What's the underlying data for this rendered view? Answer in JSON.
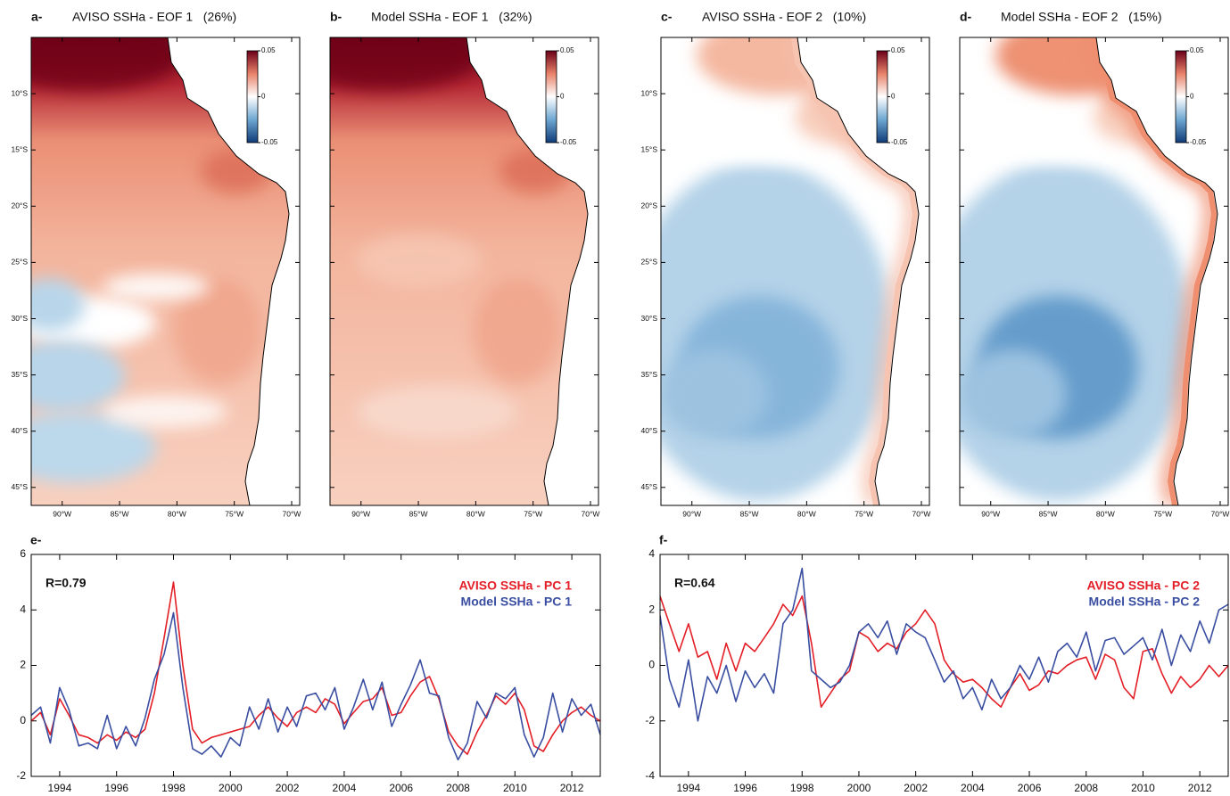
{
  "maps": [
    {
      "label": "a-",
      "title": "AVISO SSHa - EOF 1   (26%)",
      "show_lat_labels": true
    },
    {
      "label": "b-",
      "title": "Model SSHa - EOF 1   (32%)",
      "show_lat_labels": false
    },
    {
      "label": "c-",
      "title": "AVISO SSHa - EOF 2   (10%)",
      "show_lat_labels": true
    },
    {
      "label": "d-",
      "title": "Model SSHa - EOF 2   (15%)",
      "show_lat_labels": false
    }
  ],
  "map_axes": {
    "latlim": [
      -46.6,
      -5
    ],
    "lonlim": [
      -92.7,
      -69.3
    ],
    "lat_ticks": [
      {
        "value": -10,
        "label": "10°S"
      },
      {
        "value": -15,
        "label": "15°S"
      },
      {
        "value": -20,
        "label": "20°S"
      },
      {
        "value": -25,
        "label": "25°S"
      },
      {
        "value": -30,
        "label": "30°S"
      },
      {
        "value": -35,
        "label": "35°S"
      },
      {
        "value": -40,
        "label": "40°S"
      },
      {
        "value": -45,
        "label": "45°S"
      }
    ],
    "lon_ticks": [
      {
        "value": -90,
        "label": "90°W"
      },
      {
        "value": -85,
        "label": "85°W"
      },
      {
        "value": -80,
        "label": "80°W"
      },
      {
        "value": -75,
        "label": "75°W"
      },
      {
        "value": -70,
        "label": "70°W"
      }
    ],
    "colorbar": {
      "lim": [
        -0.05,
        0.05
      ],
      "ticks": [
        0.05,
        0,
        -0.05
      ]
    }
  },
  "chart_data": [
    {
      "type": "line",
      "label": "e-",
      "annotation": "R=0.79",
      "legend": "upper right",
      "xlim": [
        1993,
        2013
      ],
      "xticks": [
        1994,
        1996,
        1998,
        2000,
        2002,
        2004,
        2006,
        2008,
        2010,
        2012
      ],
      "ylim": [
        -2,
        6
      ],
      "yticks": [
        -2,
        0,
        2,
        4,
        6
      ],
      "x": [
        1993,
        1993.33,
        1993.67,
        1994,
        1994.33,
        1994.67,
        1995,
        1995.33,
        1995.67,
        1996,
        1996.33,
        1996.67,
        1997,
        1997.33,
        1997.67,
        1998,
        1998.33,
        1998.67,
        1999,
        1999.33,
        1999.67,
        2000,
        2000.33,
        2000.67,
        2001,
        2001.33,
        2001.67,
        2002,
        2002.33,
        2002.67,
        2003,
        2003.33,
        2003.67,
        2004,
        2004.33,
        2004.67,
        2005,
        2005.33,
        2005.67,
        2006,
        2006.33,
        2006.67,
        2007,
        2007.33,
        2007.67,
        2008,
        2008.33,
        2008.67,
        2009,
        2009.33,
        2009.67,
        2010,
        2010.33,
        2010.67,
        2011,
        2011.33,
        2011.67,
        2012,
        2012.33,
        2012.67,
        2013
      ],
      "series": [
        {
          "name": "AVISO SSHa - PC 1",
          "color": "#e31e26",
          "values": [
            0,
            0.3,
            -0.5,
            0.8,
            0.2,
            -0.5,
            -0.6,
            -0.8,
            -0.5,
            -0.7,
            -0.4,
            -0.6,
            -0.3,
            1.0,
            3.0,
            5.0,
            2.0,
            -0.3,
            -0.8,
            -0.6,
            -0.5,
            -0.4,
            -0.3,
            -0.2,
            0.2,
            0.5,
            0.1,
            -0.2,
            0.3,
            0.5,
            0.3,
            0.8,
            0.6,
            -0.1,
            0.3,
            0.7,
            0.8,
            1.2,
            0.2,
            0.3,
            0.9,
            1.4,
            1.6,
            0.8,
            -0.4,
            -0.9,
            -1.2,
            -0.4,
            0.2,
            0.9,
            0.6,
            1.0,
            0.4,
            -0.9,
            -1.1,
            -0.5,
            0.0,
            0.3,
            0.5,
            0.2,
            0.0
          ]
        },
        {
          "name": "Model SSHa - PC 1",
          "color": "#3a4ea1",
          "values": [
            0.2,
            0.5,
            -0.8,
            1.2,
            0.4,
            -0.9,
            -0.8,
            -1.0,
            0.2,
            -1.0,
            -0.2,
            -0.9,
            0.1,
            1.5,
            2.4,
            3.9,
            1.2,
            -1.0,
            -1.2,
            -0.9,
            -1.3,
            -0.6,
            -0.9,
            0.5,
            -0.3,
            0.8,
            -0.4,
            0.5,
            -0.2,
            0.9,
            1.0,
            0.4,
            1.2,
            -0.3,
            0.5,
            1.5,
            0.4,
            1.4,
            -0.2,
            0.6,
            1.3,
            2.2,
            1.0,
            0.9,
            -0.6,
            -1.4,
            -0.8,
            0.7,
            0.1,
            1.0,
            0.8,
            1.2,
            -0.5,
            -1.3,
            -0.6,
            1.0,
            -0.4,
            0.8,
            0.2,
            0.6,
            -0.5
          ]
        }
      ]
    },
    {
      "type": "line",
      "label": "f-",
      "annotation": "R=0.64",
      "legend": "upper right",
      "xlim": [
        1993,
        2013
      ],
      "xticks": [
        1994,
        1996,
        1998,
        2000,
        2002,
        2004,
        2006,
        2008,
        2010,
        2012
      ],
      "ylim": [
        -4,
        4
      ],
      "yticks": [
        -4,
        -2,
        0,
        2,
        4
      ],
      "x": [
        1993,
        1993.33,
        1993.67,
        1994,
        1994.33,
        1994.67,
        1995,
        1995.33,
        1995.67,
        1996,
        1996.33,
        1996.67,
        1997,
        1997.33,
        1997.67,
        1998,
        1998.33,
        1998.67,
        1999,
        1999.33,
        1999.67,
        2000,
        2000.33,
        2000.67,
        2001,
        2001.33,
        2001.67,
        2002,
        2002.33,
        2002.67,
        2003,
        2003.33,
        2003.67,
        2004,
        2004.33,
        2004.67,
        2005,
        2005.33,
        2005.67,
        2006,
        2006.33,
        2006.67,
        2007,
        2007.33,
        2007.67,
        2008,
        2008.33,
        2008.67,
        2009,
        2009.33,
        2009.67,
        2010,
        2010.33,
        2010.67,
        2011,
        2011.33,
        2011.67,
        2012,
        2012.33,
        2012.67,
        2013
      ],
      "series": [
        {
          "name": "AVISO SSHa - PC 2",
          "color": "#e31e26",
          "values": [
            2.5,
            1.5,
            0.5,
            1.5,
            0.3,
            0.5,
            -0.5,
            0.8,
            -0.2,
            0.8,
            0.5,
            1.0,
            1.5,
            2.2,
            1.8,
            2.5,
            0.8,
            -1.5,
            -1.0,
            -0.5,
            -0.2,
            1.2,
            1.0,
            0.5,
            0.8,
            0.6,
            1.2,
            1.5,
            2.0,
            1.5,
            0.2,
            -0.3,
            -0.6,
            -0.5,
            -0.8,
            -1.2,
            -1.5,
            -0.8,
            -0.3,
            -0.9,
            -0.7,
            -0.2,
            -0.3,
            0.0,
            0.2,
            0.3,
            -0.5,
            0.4,
            0.2,
            -0.8,
            -1.2,
            0.5,
            0.6,
            -0.3,
            -1.0,
            -0.4,
            -0.8,
            -0.5,
            0.0,
            -0.4,
            0.0
          ]
        },
        {
          "name": "Model SSHa - PC 2",
          "color": "#3a4ea1",
          "values": [
            1.8,
            -0.5,
            -1.5,
            0.2,
            -2.0,
            -0.4,
            -1.0,
            0.0,
            -1.3,
            -0.2,
            -0.8,
            -0.3,
            -1.0,
            1.5,
            2.0,
            3.5,
            -0.2,
            -0.5,
            -0.8,
            -0.6,
            0.0,
            1.2,
            1.5,
            1.0,
            1.6,
            0.4,
            1.5,
            1.2,
            1.0,
            0.2,
            -0.6,
            -0.2,
            -1.2,
            -0.8,
            -1.6,
            -0.5,
            -1.2,
            -0.8,
            0.0,
            -0.5,
            0.3,
            -0.6,
            0.5,
            0.8,
            0.3,
            1.2,
            -0.2,
            0.9,
            1.0,
            0.4,
            0.7,
            1.0,
            0.2,
            1.3,
            0.0,
            1.1,
            0.5,
            1.6,
            0.8,
            2.0,
            2.2
          ]
        }
      ]
    }
  ]
}
